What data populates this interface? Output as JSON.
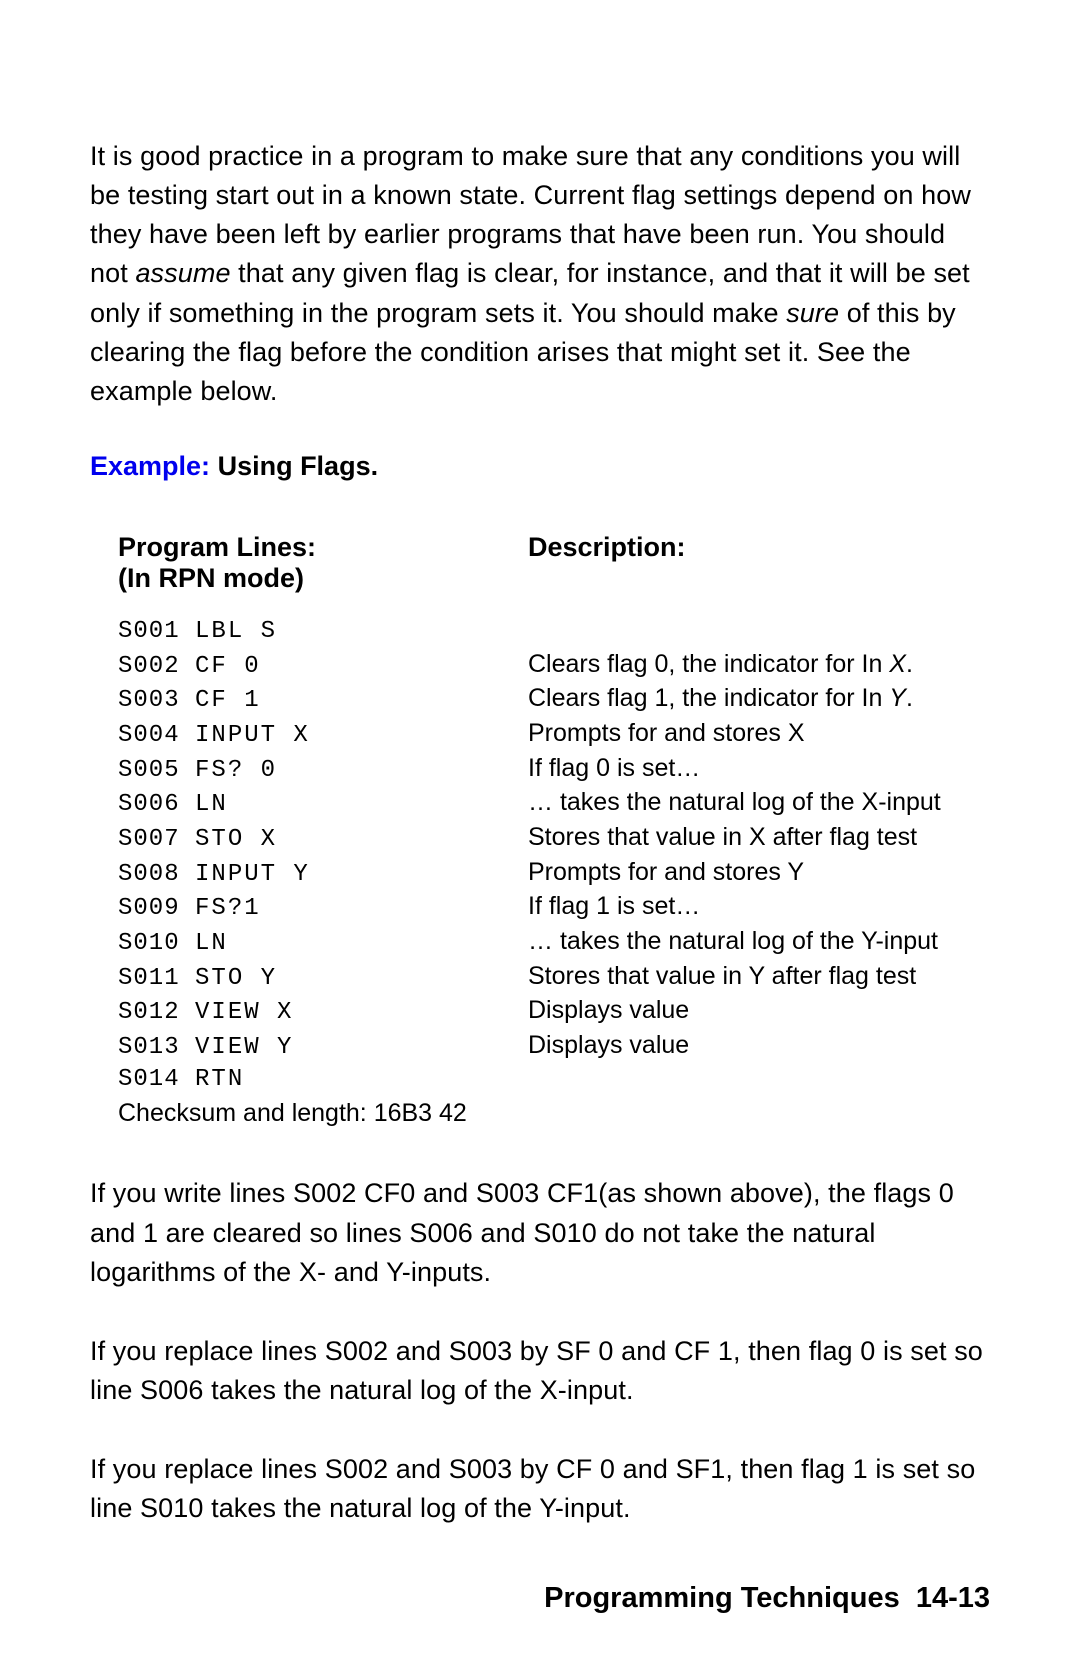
{
  "intro_paragraph": {
    "pre_assume": "It is good practice in a program to make sure that any conditions you will be testing start out in a known state. Current flag settings depend on how they have been left by earlier programs that have been run. You should not ",
    "assume": "assume",
    "mid": " that any given flag is clear, for instance, and that it will be set only if something in the program sets it. You should make ",
    "sure": "sure",
    "post_sure": " of this by clearing the flag before the condition arises that might set it. See the example below."
  },
  "example_heading": {
    "label": "Example:",
    "title": " Using Flags."
  },
  "table": {
    "header_left_line1": "Program Lines:",
    "header_left_line2": "(In RPN mode)",
    "header_right": "Description:",
    "rows": [
      {
        "line": "S001",
        "code": "LBL S",
        "desc_pre": "",
        "desc_italic": "",
        "desc_post": ""
      },
      {
        "line": "S002",
        "code": "CF 0",
        "desc_pre": "Clears flag 0, the indicator for In ",
        "desc_italic": "X",
        "desc_post": "."
      },
      {
        "line": "S003",
        "code": "CF 1",
        "desc_pre": "Clears flag 1, the indicator for In ",
        "desc_italic": "Y",
        "desc_post": "."
      },
      {
        "line": "S004",
        "code": "INPUT X",
        "desc_pre": "Prompts for and stores X",
        "desc_italic": "",
        "desc_post": ""
      },
      {
        "line": "S005",
        "code": "FS? 0",
        "desc_pre": "If flag 0 is set…",
        "desc_italic": "",
        "desc_post": ""
      },
      {
        "line": "S006",
        "code": "LN",
        "desc_pre": "… takes the natural log of the X-input",
        "desc_italic": "",
        "desc_post": ""
      },
      {
        "line": "S007",
        "code": "STO X",
        "desc_pre": "Stores that value in X after flag test",
        "desc_italic": "",
        "desc_post": ""
      },
      {
        "line": "S008",
        "code": "INPUT Y",
        "desc_pre": "Prompts for and stores Y",
        "desc_italic": "",
        "desc_post": ""
      },
      {
        "line": "S009",
        "code": "FS?1",
        "desc_pre": "If flag 1 is set…",
        "desc_italic": "",
        "desc_post": ""
      },
      {
        "line": "S010",
        "code": "LN",
        "desc_pre": "… takes the natural log of the Y-input",
        "desc_italic": "",
        "desc_post": ""
      },
      {
        "line": "S011",
        "code": "STO Y",
        "desc_pre": "Stores that value in Y after flag test",
        "desc_italic": "",
        "desc_post": ""
      },
      {
        "line": "S012",
        "code": "VIEW X",
        "desc_pre": "Displays value",
        "desc_italic": "",
        "desc_post": ""
      },
      {
        "line": "S013",
        "code": "VIEW Y",
        "desc_pre": "Displays value",
        "desc_italic": "",
        "desc_post": ""
      },
      {
        "line": "S014",
        "code": "RTN",
        "desc_pre": "",
        "desc_italic": "",
        "desc_post": ""
      }
    ],
    "checksum": "Checksum and length: 16B3 42"
  },
  "para_after_1": "If you write lines S002 CF0 and S003 CF1(as shown above), the flags 0 and 1 are cleared so lines S006 and S010 do not take the natural logarithms of the X- and Y-inputs.",
  "para_after_2": "If you replace lines S002 and S003 by SF 0 and CF 1, then flag 0 is set so line S006  takes the natural log of the X-input.",
  "para_after_3": "If you replace lines S002 and S003 by CF 0 and SF1, then flag 1 is set so line S010  takes the natural log of the Y-input.",
  "footer": {
    "title": "Programming Techniques",
    "page": "14-13"
  }
}
